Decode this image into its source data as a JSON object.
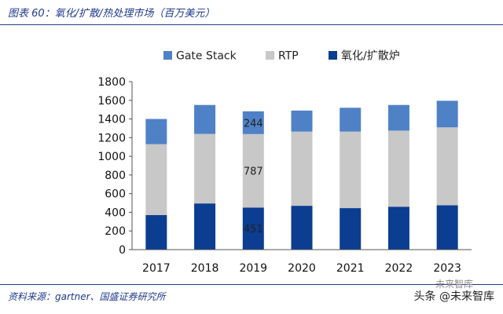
{
  "figure": {
    "title": "图表 60：氧化/扩散/热处理市场（百万美元）",
    "source": "资料来源：gartner、国盛证券研究所"
  },
  "watermark": {
    "main": "头条 @未来智库",
    "top": "未来智库"
  },
  "chart_data": {
    "type": "bar",
    "stacked": true,
    "categories": [
      "2017",
      "2018",
      "2019",
      "2020",
      "2021",
      "2022",
      "2023"
    ],
    "series": [
      {
        "name": "氧化/扩散炉",
        "color": "#0b3d91",
        "values": [
          370,
          495,
          451,
          470,
          445,
          460,
          475
        ]
      },
      {
        "name": "RTP",
        "color": "#c8c8c8",
        "values": [
          760,
          745,
          787,
          795,
          820,
          815,
          835
        ]
      },
      {
        "name": "Gate Stack",
        "color": "#4f81c7",
        "values": [
          270,
          310,
          244,
          225,
          255,
          275,
          285
        ]
      }
    ],
    "legend_order": [
      "Gate Stack",
      "RTP",
      "氧化/扩散炉"
    ],
    "legend_position": "top",
    "y_ticks": [
      "0",
      "200",
      "400",
      "600",
      "800",
      "1000",
      "1200",
      "1400",
      "1600",
      "1800"
    ],
    "ylim": [
      0,
      1800
    ],
    "annotations": [
      {
        "category": "2019",
        "series": "Gate Stack",
        "text": "244"
      },
      {
        "category": "2019",
        "series": "RTP",
        "text": "787"
      },
      {
        "category": "2019",
        "series": "氧化/扩散炉",
        "text": "451"
      }
    ],
    "xlabel": "",
    "ylabel": "",
    "grid": false
  }
}
